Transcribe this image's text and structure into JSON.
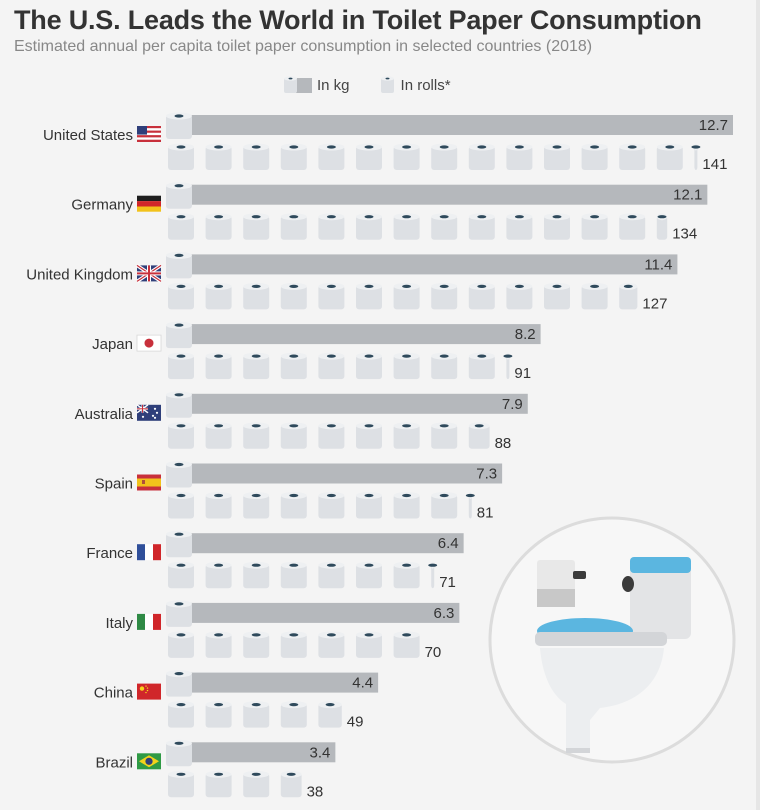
{
  "title": "The U.S. Leads the World in Toilet Paper Consumption",
  "subtitle": "Estimated annual per capita toilet paper consumption in selected countries (2018)",
  "legend": {
    "kg_label": "In kg",
    "rolls_label": "In rolls*"
  },
  "colors": {
    "bar": "#b5b8bc",
    "roll": "#dde0e4",
    "roll_core": "#2f4a5c",
    "text": "#333333"
  },
  "chart_data": {
    "type": "bar",
    "title": "The U.S. Leads the World in Toilet Paper Consumption",
    "subtitle": "Estimated annual per capita toilet paper consumption in selected countries (2018)",
    "categories": [
      "United States",
      "Germany",
      "United Kingdom",
      "Japan",
      "Australia",
      "Spain",
      "France",
      "Italy",
      "China",
      "Brazil"
    ],
    "series": [
      {
        "name": "In kg",
        "values": [
          12.7,
          12.1,
          11.4,
          8.2,
          7.9,
          7.3,
          6.4,
          6.3,
          4.4,
          3.4
        ]
      },
      {
        "name": "In rolls*",
        "values": [
          141,
          134,
          127,
          91,
          88,
          81,
          71,
          70,
          49,
          38
        ]
      }
    ],
    "flags": [
      "us-flag-icon",
      "germany-flag-icon",
      "uk-flag-icon",
      "japan-flag-icon",
      "australia-flag-icon",
      "spain-flag-icon",
      "france-flag-icon",
      "italy-flag-icon",
      "china-flag-icon",
      "brazil-flag-icon"
    ],
    "legend_position": "top",
    "grid": false
  },
  "illustration": "toilet-icon"
}
